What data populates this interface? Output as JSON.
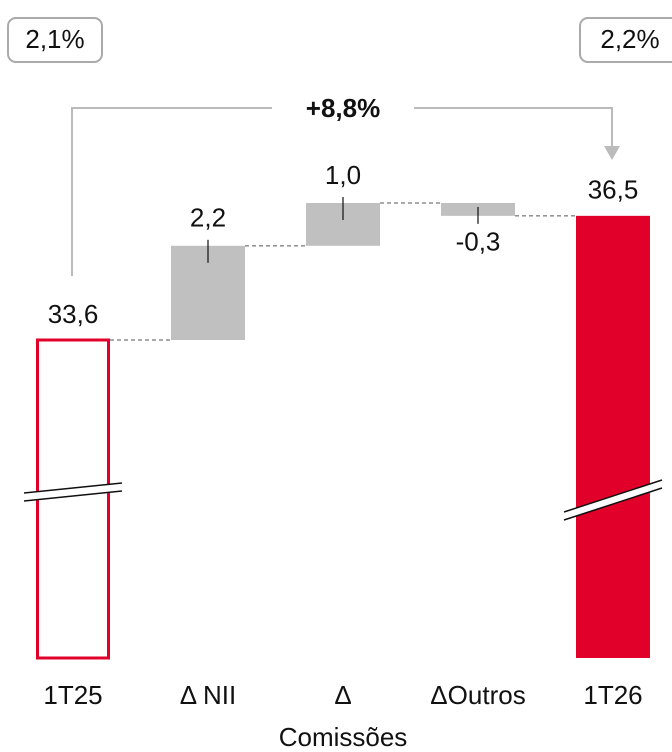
{
  "chart_data": {
    "type": "waterfall",
    "categories": [
      "1T25",
      "Δ NII",
      "Δ\nComissões",
      "ΔOutros",
      "1T26"
    ],
    "values": [
      33.6,
      2.2,
      1.0,
      -0.3,
      36.5
    ],
    "value_labels": [
      "33,6",
      "2,2",
      "1,0",
      "-0,3",
      "36,5"
    ],
    "total_color": "#e0002a",
    "delta_color": "#c0c0c0",
    "annotations": {
      "left_badge": "2,1%",
      "right_badge": "2,2%",
      "growth": "+8,8%"
    }
  }
}
